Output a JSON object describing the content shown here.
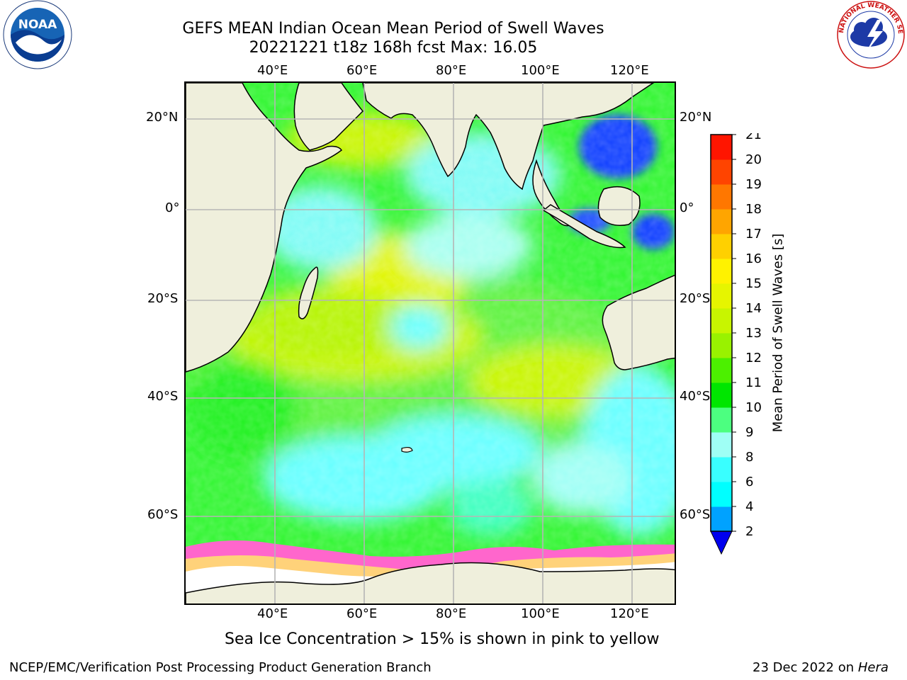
{
  "header": {
    "title_line1": "GEFS MEAN Indian Ocean Mean Period of Swell Waves",
    "title_line2": "20221221 t18z 168h fcst   Max: 16.05"
  },
  "logos": {
    "left": "noaa-logo",
    "left_text": "NOAA",
    "right": "nws-logo",
    "right_text": "NATIONAL WEATHER SERVICE"
  },
  "map": {
    "top_lon_labels": [
      "40°E",
      "60°E",
      "80°E",
      "100°E",
      "120°E"
    ],
    "bottom_lon_labels": [
      "40°E",
      "60°E",
      "80°E",
      "100°E",
      "120°E"
    ],
    "left_lat_labels": [
      "20°N",
      "0°",
      "20°S",
      "40°S",
      "60°S"
    ],
    "right_lat_labels": [
      "20°N",
      "0°",
      "20°S",
      "40°S",
      "60°S"
    ]
  },
  "colorbar": {
    "label": "Mean Period of Swell Waves [s]",
    "ticks": [
      "2",
      "4",
      "6",
      "8",
      "9",
      "10",
      "11",
      "12",
      "13",
      "14",
      "15",
      "16",
      "17",
      "18",
      "19",
      "20",
      "21"
    ],
    "colors": [
      "#0047ff",
      "#00a2ff",
      "#00ffff",
      "#39ffff",
      "#9ffff5",
      "#4cff80",
      "#00e600",
      "#4cf000",
      "#99f200",
      "#c8f500",
      "#e6f500",
      "#fff200",
      "#ffd000",
      "#ffa500",
      "#ff7700",
      "#ff4400",
      "#ff1500",
      "#ff0000"
    ],
    "under_color": "#0000ee"
  },
  "note": "Sea Ice Concentration > 15% is shown in pink to yellow",
  "footer": {
    "left": "NCEP/EMC/Verification Post Processing Product Generation Branch",
    "date": "23 Dec 2022 on ",
    "machine": "Hera"
  }
}
